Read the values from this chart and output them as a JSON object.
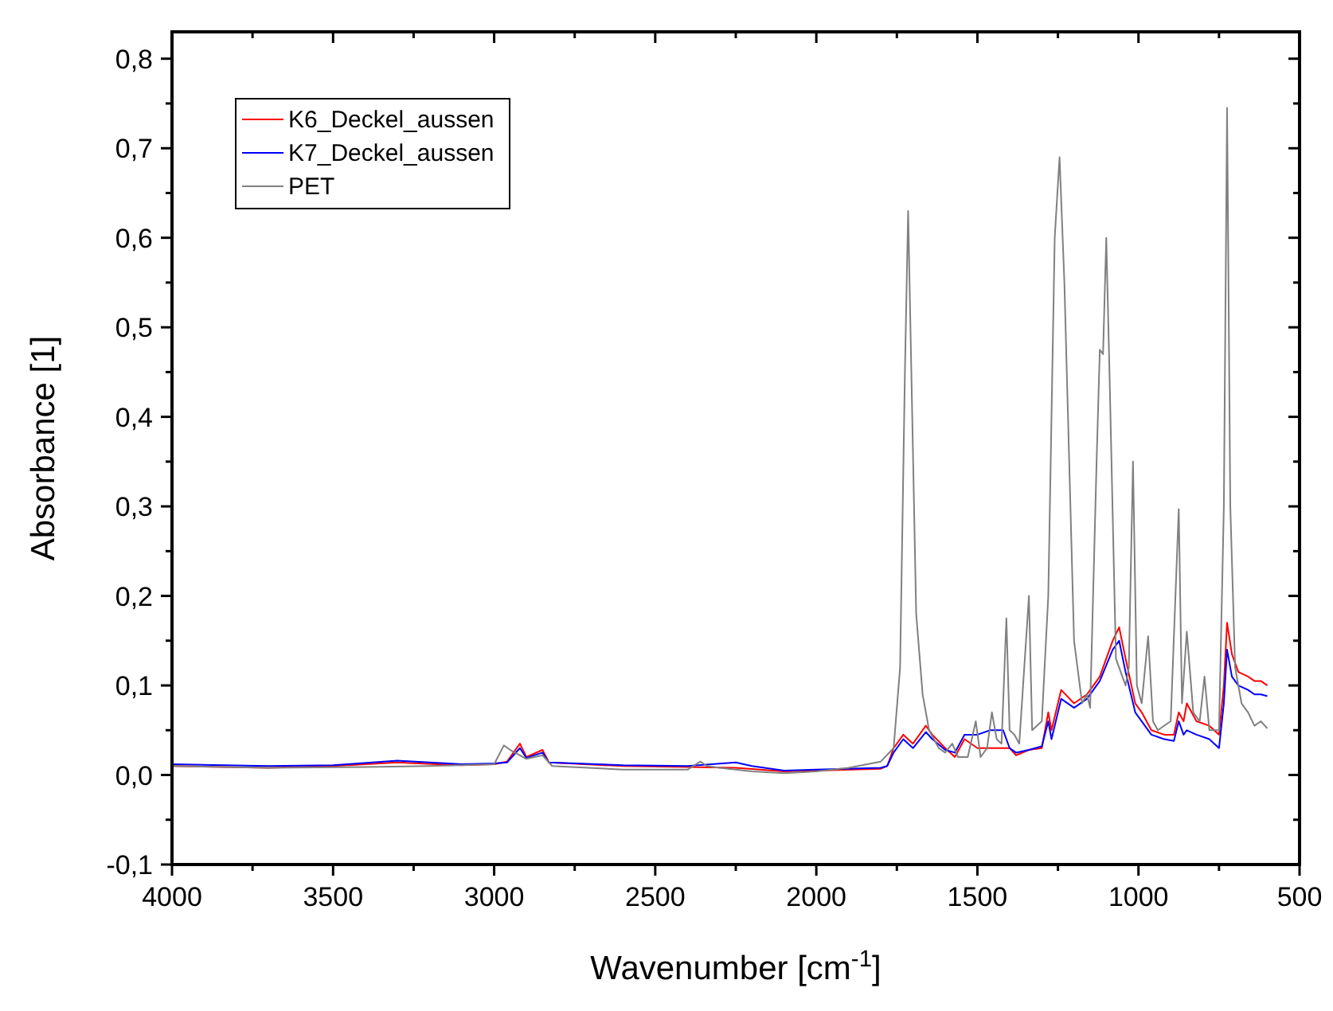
{
  "chart_data": {
    "type": "line",
    "xlabel": "Wavenumber [cm$^{-1}$]",
    "ylabel": "Absorbance [1]",
    "xlim": [
      4000,
      500
    ],
    "ylim": [
      -0.1,
      0.83
    ],
    "xticks": [
      4000,
      {
        "value": 3750,
        "label": null
      },
      3500,
      {
        "value": 3250,
        "label": null
      },
      3000,
      {
        "value": 2750,
        "label": null
      },
      2500,
      {
        "value": 2250,
        "label": null
      },
      2000,
      {
        "value": 1750,
        "label": null
      },
      1500,
      {
        "value": 1250,
        "label": null
      },
      1000,
      {
        "value": 750,
        "label": null
      },
      500
    ],
    "yticks": [
      {
        "value": -0.1,
        "label": "-0,1"
      },
      {
        "value": -0.05,
        "label": null
      },
      {
        "value": 0,
        "label": "0,0"
      },
      {
        "value": 0.05,
        "label": null
      },
      {
        "value": 0.1,
        "label": "0,1"
      },
      {
        "value": 0.15,
        "label": null
      },
      {
        "value": 0.2,
        "label": "0,2"
      },
      {
        "value": 0.25,
        "label": null
      },
      {
        "value": 0.3,
        "label": "0,3"
      },
      {
        "value": 0.35,
        "label": null
      },
      {
        "value": 0.4,
        "label": "0,4"
      },
      {
        "value": 0.45,
        "label": null
      },
      {
        "value": 0.5,
        "label": "0,5"
      },
      {
        "value": 0.55,
        "label": null
      },
      {
        "value": 0.6,
        "label": "0,6"
      },
      {
        "value": 0.65,
        "label": null
      },
      {
        "value": 0.7,
        "label": "0,7"
      },
      {
        "value": 0.75,
        "label": null
      },
      {
        "value": 0.8,
        "label": "0,8"
      }
    ],
    "legend": "top left",
    "grid": false,
    "marker": "none",
    "line_style": "solid",
    "series": [
      {
        "name": "K6_Deckel_aussen",
        "color": "#ff0000",
        "x": [
          4000,
          3700,
          3500,
          3300,
          3100,
          3000,
          2960,
          2920,
          2900,
          2850,
          2830,
          2600,
          2400,
          2250,
          2100,
          2000,
          1800,
          1780,
          1760,
          1730,
          1700,
          1660,
          1640,
          1600,
          1570,
          1540,
          1500,
          1450,
          1400,
          1380,
          1340,
          1300,
          1280,
          1270,
          1240,
          1200,
          1160,
          1120,
          1080,
          1060,
          1040,
          1010,
          990,
          960,
          920,
          890,
          875,
          860,
          850,
          820,
          780,
          750,
          735,
          725,
          710,
          690,
          660,
          640,
          620,
          600
        ],
        "values": [
          0.01,
          0.008,
          0.01,
          0.014,
          0.011,
          0.012,
          0.015,
          0.035,
          0.02,
          0.028,
          0.014,
          0.01,
          0.009,
          0.008,
          0.004,
          0.005,
          0.007,
          0.01,
          0.03,
          0.045,
          0.035,
          0.055,
          0.045,
          0.03,
          0.02,
          0.04,
          0.03,
          0.03,
          0.03,
          0.022,
          0.028,
          0.03,
          0.07,
          0.05,
          0.095,
          0.08,
          0.09,
          0.11,
          0.15,
          0.165,
          0.13,
          0.08,
          0.07,
          0.05,
          0.045,
          0.045,
          0.07,
          0.06,
          0.08,
          0.06,
          0.055,
          0.045,
          0.1,
          0.17,
          0.135,
          0.115,
          0.11,
          0.105,
          0.105,
          0.1
        ]
      },
      {
        "name": "K7_Deckel_aussen",
        "color": "#0000ff",
        "x": [
          4000,
          3700,
          3500,
          3300,
          3100,
          3000,
          2960,
          2920,
          2900,
          2850,
          2830,
          2600,
          2400,
          2250,
          2200,
          2100,
          2000,
          1800,
          1780,
          1760,
          1730,
          1700,
          1660,
          1640,
          1600,
          1570,
          1540,
          1500,
          1460,
          1420,
          1400,
          1380,
          1340,
          1300,
          1280,
          1270,
          1240,
          1200,
          1160,
          1120,
          1080,
          1060,
          1040,
          1010,
          990,
          960,
          920,
          890,
          875,
          860,
          850,
          820,
          780,
          750,
          735,
          725,
          710,
          690,
          660,
          640,
          620,
          600
        ],
        "values": [
          0.012,
          0.01,
          0.011,
          0.016,
          0.012,
          0.013,
          0.014,
          0.03,
          0.019,
          0.025,
          0.014,
          0.011,
          0.01,
          0.014,
          0.01,
          0.005,
          0.006,
          0.008,
          0.01,
          0.025,
          0.04,
          0.03,
          0.048,
          0.04,
          0.028,
          0.025,
          0.045,
          0.045,
          0.05,
          0.05,
          0.03,
          0.025,
          0.028,
          0.032,
          0.06,
          0.04,
          0.085,
          0.075,
          0.085,
          0.105,
          0.14,
          0.15,
          0.115,
          0.07,
          0.06,
          0.045,
          0.04,
          0.038,
          0.06,
          0.045,
          0.05,
          0.045,
          0.04,
          0.03,
          0.08,
          0.14,
          0.11,
          0.1,
          0.095,
          0.09,
          0.09,
          0.088
        ]
      },
      {
        "name": "PET",
        "color": "#808080",
        "x": [
          4000,
          3700,
          3400,
          3200,
          3000,
          2970,
          2950,
          2920,
          2900,
          2850,
          2820,
          2600,
          2400,
          2360,
          2340,
          2300,
          2200,
          2100,
          2000,
          1900,
          1800,
          1760,
          1740,
          1725,
          1715,
          1705,
          1690,
          1670,
          1650,
          1620,
          1600,
          1578,
          1560,
          1530,
          1505,
          1490,
          1470,
          1455,
          1440,
          1425,
          1410,
          1400,
          1385,
          1370,
          1340,
          1330,
          1300,
          1280,
          1260,
          1245,
          1230,
          1200,
          1175,
          1160,
          1150,
          1130,
          1120,
          1110,
          1100,
          1090,
          1070,
          1040,
          1030,
          1017,
          1005,
          990,
          970,
          955,
          940,
          900,
          875,
          865,
          850,
          830,
          810,
          795,
          780,
          750,
          735,
          725,
          715,
          700,
          680,
          660,
          640,
          620,
          600
        ],
        "values": [
          0.01,
          0.008,
          0.009,
          0.01,
          0.012,
          0.033,
          0.028,
          0.022,
          0.018,
          0.022,
          0.01,
          0.006,
          0.006,
          0.015,
          0.01,
          0.008,
          0.004,
          0.002,
          0.004,
          0.008,
          0.015,
          0.03,
          0.12,
          0.45,
          0.63,
          0.45,
          0.18,
          0.09,
          0.05,
          0.03,
          0.025,
          0.035,
          0.02,
          0.02,
          0.06,
          0.02,
          0.03,
          0.07,
          0.04,
          0.035,
          0.175,
          0.05,
          0.045,
          0.035,
          0.2,
          0.05,
          0.06,
          0.2,
          0.6,
          0.69,
          0.55,
          0.15,
          0.08,
          0.09,
          0.075,
          0.35,
          0.475,
          0.47,
          0.6,
          0.45,
          0.13,
          0.1,
          0.12,
          0.35,
          0.1,
          0.08,
          0.155,
          0.06,
          0.05,
          0.06,
          0.297,
          0.08,
          0.16,
          0.07,
          0.06,
          0.11,
          0.05,
          0.05,
          0.3,
          0.745,
          0.3,
          0.12,
          0.08,
          0.07,
          0.055,
          0.06,
          0.052
        ]
      }
    ]
  }
}
